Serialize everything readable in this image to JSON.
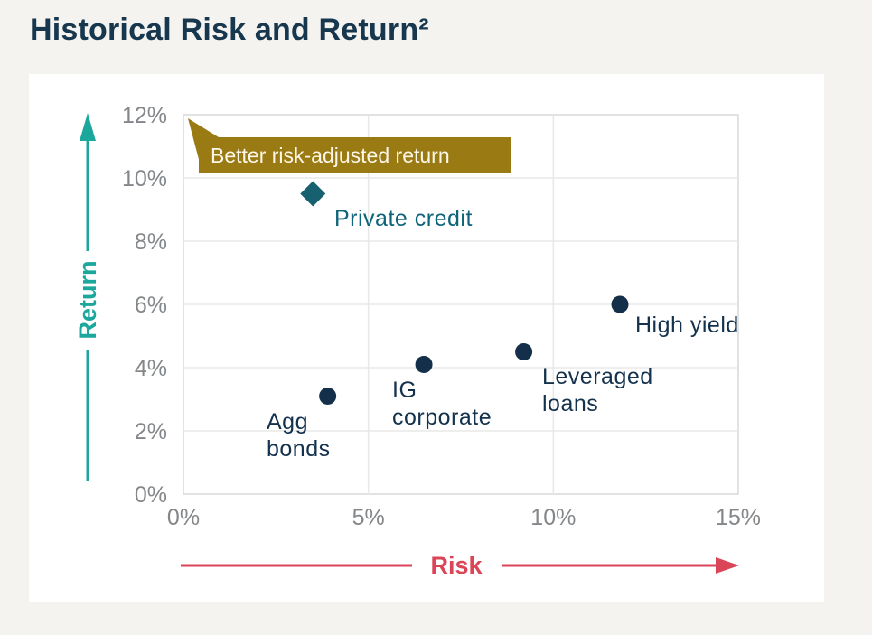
{
  "page": {
    "title": "Historical Risk and Return²"
  },
  "chart_data": {
    "type": "scatter",
    "title": "Historical Risk and Return²",
    "xlabel": "Risk",
    "ylabel": "Return",
    "xlim": [
      0,
      15
    ],
    "ylim": [
      0,
      12
    ],
    "grid": true,
    "x_ticks": [
      {
        "value": 0,
        "label": "0%"
      },
      {
        "value": 5,
        "label": "5%"
      },
      {
        "value": 10,
        "label": "10%"
      },
      {
        "value": 15,
        "label": "15%"
      }
    ],
    "y_ticks": [
      {
        "value": 0,
        "label": "0%"
      },
      {
        "value": 2,
        "label": "2%"
      },
      {
        "value": 4,
        "label": "4%"
      },
      {
        "value": 6,
        "label": "6%"
      },
      {
        "value": 8,
        "label": "8%"
      },
      {
        "value": 10,
        "label": "10%"
      },
      {
        "value": 12,
        "label": "12%"
      }
    ],
    "points": [
      {
        "label": "Private credit",
        "label_lines": [
          "Private credit"
        ],
        "risk": 3.5,
        "return": 9.5,
        "marker": "diamond",
        "marker_color": "#16606f",
        "label_color": "#0e6478"
      },
      {
        "label": "Agg bonds",
        "label_lines": [
          "Agg",
          "bonds"
        ],
        "risk": 3.9,
        "return": 3.1,
        "marker": "circle",
        "marker_color": "#132f49",
        "label_color": "#14324d"
      },
      {
        "label": "IG corporate",
        "label_lines": [
          "IG",
          "corporate"
        ],
        "risk": 6.5,
        "return": 4.1,
        "marker": "circle",
        "marker_color": "#132f49",
        "label_color": "#14324d"
      },
      {
        "label": "Leveraged loans",
        "label_lines": [
          "Leveraged",
          "loans"
        ],
        "risk": 9.2,
        "return": 4.5,
        "marker": "circle",
        "marker_color": "#132f49",
        "label_color": "#14324d"
      },
      {
        "label": "High yield",
        "label_lines": [
          "High yield"
        ],
        "risk": 11.8,
        "return": 6.0,
        "marker": "circle",
        "marker_color": "#132f49",
        "label_color": "#14324d"
      }
    ],
    "annotation": {
      "text": "Better risk-adjusted return",
      "background": "#9a7a12",
      "text_color": "#fcf7e9"
    },
    "legend": null
  },
  "colors": {
    "page_background": "#f4f3f0",
    "card_background": "#ffffff",
    "title": "#17374e",
    "tick_label": "#84878a",
    "gridline": "#e8e8e6",
    "plot_border": "#d8d8d6",
    "return_axis": "#1ca79d",
    "risk_axis": "#da4558"
  }
}
